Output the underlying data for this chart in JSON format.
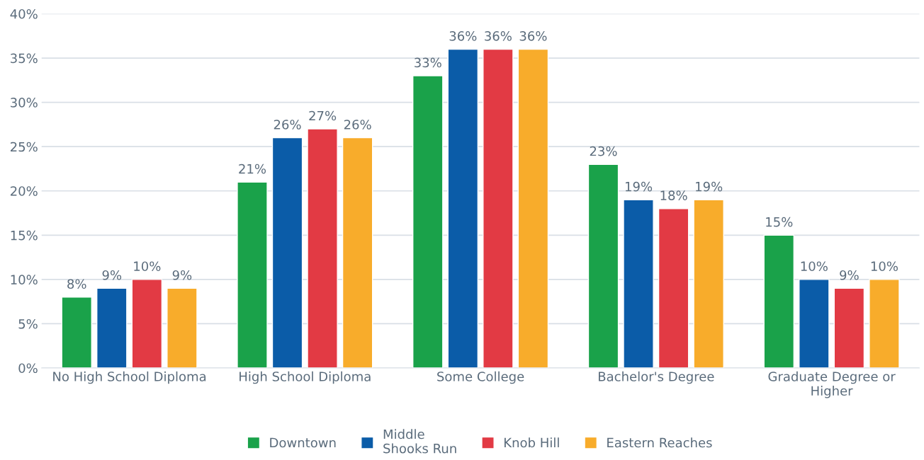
{
  "chart_data": {
    "type": "bar",
    "categories": [
      "No High School Diploma",
      "High School Diploma",
      "Some College",
      "Bachelor's Degree",
      "Graduate Degree or\nHigher"
    ],
    "series": [
      {
        "name": "Downtown",
        "color": "#1aa24a",
        "values": [
          8,
          21,
          33,
          23,
          15
        ],
        "value_labels": [
          "8%",
          "21%",
          "33%",
          "23%",
          "15%"
        ]
      },
      {
        "name": "Middle\nShooks Run",
        "color": "#0b5ca8",
        "values": [
          9,
          26,
          36,
          19,
          10
        ],
        "value_labels": [
          "9%",
          "26%",
          "36%",
          "19%",
          "10%"
        ]
      },
      {
        "name": "Knob Hill",
        "color": "#e23a44",
        "values": [
          10,
          27,
          36,
          18,
          9
        ],
        "value_labels": [
          "10%",
          "27%",
          "36%",
          "18%",
          "9%"
        ]
      },
      {
        "name": "Eastern Reaches",
        "color": "#f8ac2b",
        "values": [
          9,
          26,
          36,
          19,
          10
        ],
        "value_labels": [
          "9%",
          "26%",
          "36%",
          "19%",
          "10%"
        ]
      }
    ],
    "ylim": [
      0,
      40
    ],
    "yticks": [
      {
        "value": 0,
        "label": "0%"
      },
      {
        "value": 5,
        "label": "5%"
      },
      {
        "value": 10,
        "label": "10%"
      },
      {
        "value": 15,
        "label": "15%"
      },
      {
        "value": 20,
        "label": "20%"
      },
      {
        "value": 25,
        "label": "25%"
      },
      {
        "value": 30,
        "label": "30%"
      },
      {
        "value": 35,
        "label": "35%"
      },
      {
        "value": 40,
        "label": "40%"
      }
    ],
    "grid": "y",
    "legend": "bottom"
  }
}
